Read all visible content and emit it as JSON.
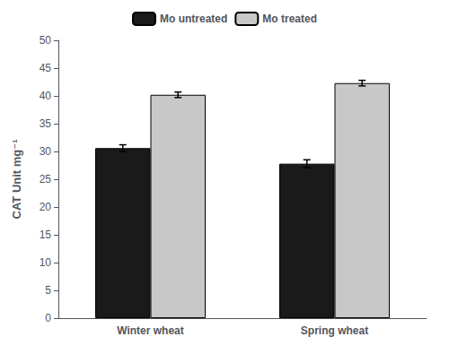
{
  "chart_data": {
    "type": "bar",
    "categories": [
      "Winter wheat",
      "Spring wheat"
    ],
    "series": [
      {
        "name": "Mo untreated",
        "color": "#1a1a1a",
        "values": [
          30.6,
          27.8
        ],
        "errors": [
          0.6,
          0.7
        ]
      },
      {
        "name": "Mo treated",
        "color": "#c8c8c8",
        "values": [
          40.2,
          42.3
        ],
        "errors": [
          0.5,
          0.5
        ]
      }
    ],
    "ylabel": "CAT Unit mg⁻¹",
    "ylim": [
      0,
      50
    ],
    "yticks": [
      0,
      5,
      10,
      15,
      20,
      25,
      30,
      35,
      40,
      45,
      50
    ],
    "grid": false,
    "legend": "top"
  }
}
